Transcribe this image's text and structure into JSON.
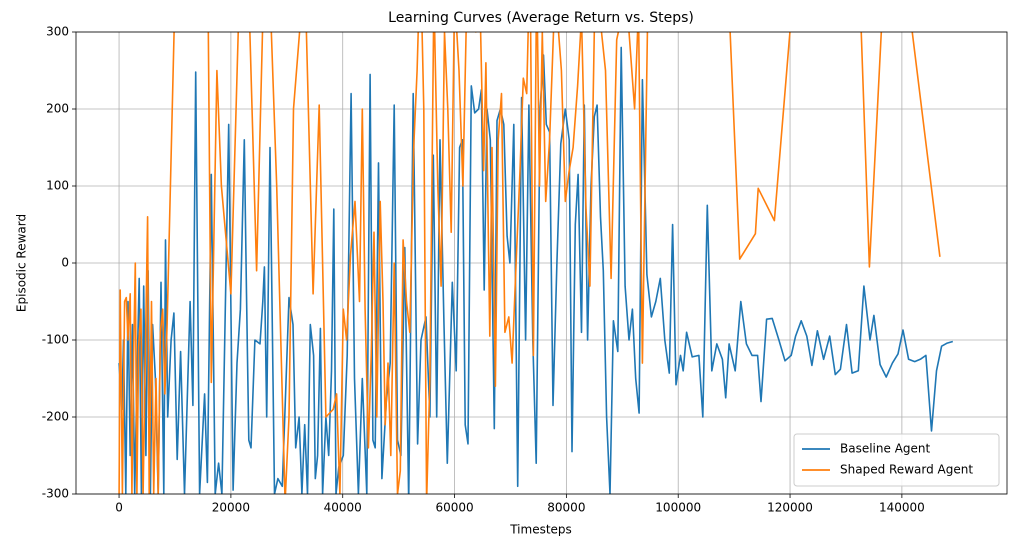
{
  "chart_data": {
    "type": "line",
    "title": "Learning Curves (Average Return vs. Steps)",
    "x_label": "Timesteps",
    "y_label": "Episodic Reward",
    "xlim": [
      -7700,
      158800
    ],
    "ylim": [
      -300,
      300
    ],
    "xticks": [
      0,
      20000,
      40000,
      60000,
      80000,
      100000,
      120000,
      140000
    ],
    "yticks": [
      -300,
      -200,
      -100,
      0,
      100,
      200,
      300
    ],
    "grid": true,
    "legend": "lower right",
    "series": [
      {
        "name": "Baseline Agent",
        "color": "#1f77b4",
        "x": [
          0,
          500,
          800,
          1200,
          1600,
          2000,
          2400,
          2800,
          3200,
          3600,
          4000,
          4400,
          4800,
          5200,
          5600,
          6000,
          6500,
          7000,
          7500,
          8000,
          8300,
          8700,
          9300,
          9800,
          10400,
          11000,
          11700,
          12700,
          13200,
          13700,
          14400,
          15300,
          15800,
          16500,
          17200,
          17800,
          18400,
          19600,
          20400,
          21100,
          21700,
          22400,
          22800,
          23200,
          23600,
          24300,
          25200,
          25700,
          26000,
          26400,
          27000,
          27800,
          28400,
          29200,
          30400,
          31100,
          31600,
          32200,
          32700,
          33200,
          33700,
          34200,
          34800,
          35100,
          35500,
          36000,
          36400,
          37000,
          37500,
          38000,
          38400,
          38800,
          39300,
          40100,
          40800,
          41500,
          42100,
          42800,
          43500,
          44300,
          44900,
          45400,
          45800,
          46400,
          47000,
          47800,
          48500,
          49200,
          49800,
          50400,
          51100,
          51800,
          52600,
          53400,
          54000,
          54900,
          55600,
          56200,
          56800,
          57400,
          58100,
          58700,
          59200,
          59600,
          60300,
          60900,
          61400,
          61900,
          62400,
          63000,
          63600,
          64300,
          64800,
          65300,
          65800,
          66400,
          67100,
          67600,
          68200,
          68800,
          69400,
          69900,
          70600,
          71300,
          72000,
          72700,
          73300,
          74000,
          74600,
          75300,
          75900,
          76400,
          77000,
          77600,
          78300,
          79000,
          79800,
          80500,
          81000,
          81600,
          82100,
          82700,
          83200,
          83800,
          84400,
          85000,
          85500,
          86100,
          86600,
          87200,
          87800,
          88400,
          89200,
          89800,
          90500,
          91200,
          91800,
          92400,
          93000,
          93600,
          94400,
          95200,
          96000,
          96800,
          97600,
          98400,
          99000,
          99600,
          100400,
          100900,
          101500,
          102500,
          103700,
          104400,
          105200,
          106000,
          106900,
          107900,
          108500,
          109100,
          110200,
          111200,
          112200,
          113200,
          114200,
          114800,
          115800,
          116800,
          118000,
          119100,
          120200,
          121000,
          122000,
          123000,
          123900,
          124900,
          126000,
          127100,
          128100,
          129000,
          130100,
          131100,
          132200,
          133200,
          134300,
          135000,
          136100,
          137200,
          138300,
          139300,
          140200,
          141200,
          142300,
          143300,
          144300,
          145300,
          146200,
          147100,
          148100,
          149100
        ],
        "values": [
          -130,
          -190,
          -100,
          -300,
          -50,
          -250,
          -80,
          -300,
          -150,
          -20,
          -300,
          -30,
          -250,
          -10,
          -300,
          -80,
          -150,
          -300,
          -25,
          -300,
          30,
          -200,
          -100,
          -65,
          -255,
          -115,
          -300,
          -50,
          -185,
          248,
          -300,
          -170,
          -285,
          115,
          -300,
          -260,
          -300,
          180,
          -295,
          -130,
          -60,
          160,
          -40,
          -230,
          -240,
          -100,
          -105,
          -50,
          -5,
          -200,
          150,
          -300,
          -280,
          -290,
          -45,
          -80,
          -240,
          -200,
          -300,
          -210,
          -300,
          -80,
          -120,
          -280,
          -250,
          -85,
          -300,
          -200,
          -250,
          -140,
          70,
          -300,
          -265,
          -250,
          -120,
          220,
          -150,
          -300,
          -150,
          -300,
          245,
          -230,
          -240,
          130,
          -280,
          -180,
          -130,
          205,
          -230,
          -250,
          20,
          -310,
          220,
          -235,
          -100,
          -70,
          -200,
          140,
          -200,
          160,
          -75,
          -260,
          -130,
          -25,
          -140,
          150,
          160,
          -210,
          -235,
          230,
          195,
          200,
          225,
          -35,
          200,
          160,
          -215,
          185,
          200,
          180,
          35,
          0,
          180,
          -290,
          215,
          -100,
          205,
          -100,
          -260,
          200,
          270,
          180,
          170,
          -185,
          0,
          155,
          200,
          160,
          -245,
          50,
          115,
          -90,
          205,
          -100,
          100,
          190,
          205,
          60,
          -10,
          -200,
          -300,
          -75,
          -115,
          280,
          -30,
          -100,
          -60,
          -150,
          -195,
          238,
          -15,
          -70,
          -50,
          -20,
          -100,
          -143,
          50,
          -158,
          -120,
          -140,
          -90,
          -122,
          -120,
          -200,
          75,
          -140,
          -105,
          -125,
          -175,
          -105,
          -140,
          -50,
          -105,
          -120,
          -120,
          -180,
          -73,
          -72,
          -100,
          -127,
          -120,
          -95,
          -75,
          -95,
          -133,
          -88,
          -125,
          -95,
          -145,
          -138,
          -80,
          -143,
          -140,
          -30,
          -100,
          -68,
          -132,
          -148,
          -130,
          -118,
          -87,
          -125,
          -128,
          -125,
          -120,
          -218,
          -140,
          -108,
          -104,
          -102
        ]
      },
      {
        "name": "Shaped Reward Agent",
        "color": "#ff7f0e",
        "x": [
          0,
          200,
          600,
          1000,
          1300,
          1600,
          2000,
          2300,
          2600,
          2900,
          3200,
          3500,
          3900,
          4300,
          4700,
          5100,
          5400,
          5800,
          6200,
          6600,
          7000,
          7400,
          7800,
          8200,
          8600,
          10000,
          11000,
          13300,
          14600,
          15900,
          16500,
          17500,
          18300,
          20000,
          21500,
          23000,
          24600,
          26000,
          27000,
          28200,
          29700,
          30400,
          31200,
          32500,
          33500,
          34700,
          35800,
          37000,
          38300,
          38900,
          39500,
          40100,
          40700,
          41400,
          42200,
          43000,
          43500,
          44000,
          44600,
          45100,
          45600,
          46100,
          46700,
          47200,
          47600,
          48100,
          48600,
          49200,
          49800,
          50300,
          50800,
          51400,
          52000,
          52700,
          53300,
          53900,
          54500,
          55000,
          55600,
          56300,
          57000,
          57600,
          58200,
          58800,
          59400,
          60000,
          60800,
          61500,
          62200,
          63000,
          63800,
          64600,
          65200,
          65600,
          66300,
          66700,
          67300,
          67800,
          68400,
          69000,
          69700,
          70300,
          71000,
          71700,
          72300,
          72900,
          73500,
          74100,
          74700,
          75200,
          75700,
          76300,
          77000,
          77700,
          78400,
          79100,
          79800,
          80500,
          81200,
          82000,
          82700,
          83500,
          84200,
          85000,
          86000,
          87000,
          88000,
          89000,
          89900,
          90700,
          91500,
          92200,
          92900,
          93600,
          94600,
          96000,
          99000,
          109000,
          111000,
          113800,
          114300,
          117200,
          120200,
          125000,
          132500,
          134200,
          136400,
          138500,
          141000,
          146800
        ],
        "values": [
          -300,
          -35,
          -300,
          -50,
          -45,
          -100,
          -40,
          -300,
          -120,
          0,
          -300,
          -110,
          -60,
          -300,
          -120,
          60,
          -300,
          -50,
          -300,
          -150,
          -300,
          -90,
          -60,
          -170,
          -80,
          350,
          400,
          350,
          350,
          350,
          -155,
          250,
          100,
          -40,
          350,
          400,
          -10,
          400,
          350,
          100,
          -310,
          -200,
          200,
          320,
          300,
          -40,
          205,
          -200,
          -190,
          -170,
          -300,
          -60,
          -100,
          10,
          80,
          -50,
          200,
          -60,
          -240,
          -120,
          40,
          -200,
          80,
          -50,
          -210,
          -130,
          -250,
          0,
          -300,
          -270,
          30,
          -50,
          -90,
          150,
          250,
          400,
          200,
          -310,
          -150,
          350,
          100,
          -30,
          300,
          200,
          40,
          350,
          250,
          100,
          350,
          330,
          300,
          320,
          120,
          260,
          -95,
          150,
          -160,
          160,
          220,
          -90,
          -70,
          -130,
          0,
          120,
          240,
          220,
          400,
          -120,
          380,
          100,
          300,
          80,
          160,
          300,
          320,
          250,
          80,
          120,
          150,
          230,
          320,
          70,
          -30,
          300,
          320,
          250,
          -20,
          290,
          320,
          350,
          270,
          200,
          330,
          -130,
          350,
          400,
          400,
          350,
          5,
          38,
          97,
          55,
          320,
          400,
          350,
          -5,
          310,
          400,
          350,
          8
        ]
      }
    ]
  }
}
